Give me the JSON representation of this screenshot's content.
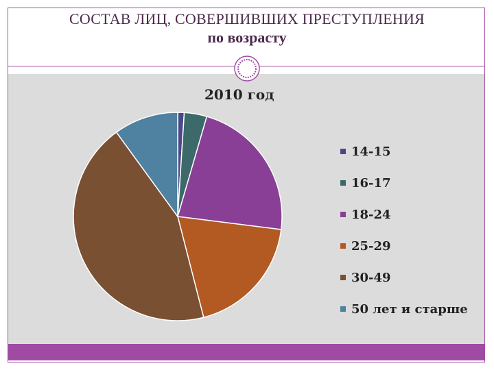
{
  "slide": {
    "title_line1": "СОСТАВ ЛИЦ, СОВЕРШИВШИХ ПРЕСТУПЛЕНИЯ",
    "title_line2": "по возрасту",
    "accent_color": "#a04ba3",
    "chart_bg_color": "#dcdcdc"
  },
  "chart_data": {
    "type": "pie",
    "title": "2010 год",
    "legend_position": "right",
    "slices": [
      {
        "label": "14-15",
        "value": 1,
        "color": "#4b4889"
      },
      {
        "label": "16-17",
        "value": 3.5,
        "color": "#3c6a6a"
      },
      {
        "label": "18-24",
        "value": 22.5,
        "color": "#8a3f96"
      },
      {
        "label": "25-29",
        "value": 19,
        "color": "#b35a23"
      },
      {
        "label": "30-49",
        "value": 44,
        "color": "#7a5033"
      },
      {
        "label": "50 лет и старше",
        "value": 10,
        "color": "#4f81a0"
      }
    ]
  }
}
